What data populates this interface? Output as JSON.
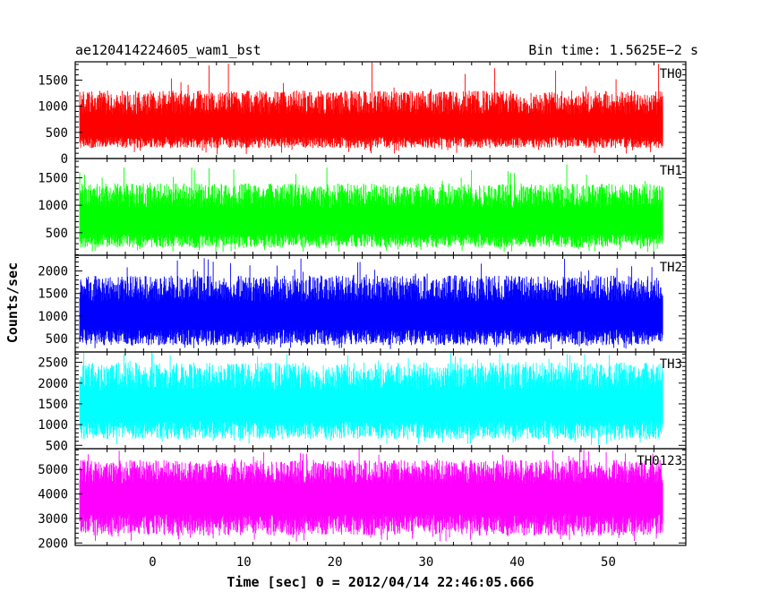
{
  "header": {
    "title": "ae120414224605_wam1_bst",
    "bin_time": "Bin time: 1.5625E−2 s"
  },
  "chart_data": {
    "type": "line",
    "xlabel": "Time [sec] 0 = 2012/04/14 22:46:05.666",
    "ylabel": "Counts/sec",
    "xlim": [
      -8.5,
      58.5
    ],
    "x_ticks": [
      0,
      10,
      20,
      30,
      40,
      50
    ],
    "x_range_data": [
      -8,
      56
    ],
    "bin_time_sec": 0.015625,
    "panels": [
      {
        "name": "TH0",
        "color": "#ff0000",
        "ylim": [
          0,
          1850
        ],
        "y_ticks": [
          0,
          500,
          1000,
          1500
        ],
        "level": [
          200,
          600,
          1300
        ],
        "peak": 1850
      },
      {
        "name": "TH1",
        "color": "#00ff00",
        "ylim": [
          90,
          1850
        ],
        "y_ticks": [
          500,
          1000,
          1500
        ],
        "level": [
          230,
          700,
          1400
        ],
        "peak": 1750
      },
      {
        "name": "TH2",
        "color": "#0000ff",
        "ylim": [
          200,
          2350
        ],
        "y_ticks": [
          500,
          1000,
          1500,
          2000
        ],
        "level": [
          350,
          1000,
          1900
        ],
        "peak": 2300
      },
      {
        "name": "TH3",
        "color": "#00ffff",
        "ylim": [
          420,
          2750
        ],
        "y_ticks": [
          500,
          1000,
          1500,
          2000,
          2500
        ],
        "level": [
          650,
          1450,
          2500
        ],
        "peak": 2750
      },
      {
        "name": "TH0123",
        "color": "#ff00ff",
        "ylim": [
          1900,
          5850
        ],
        "y_ticks": [
          2000,
          3000,
          4000,
          5000
        ],
        "level": [
          2300,
          3900,
          5400
        ],
        "peak": 5850
      }
    ]
  }
}
